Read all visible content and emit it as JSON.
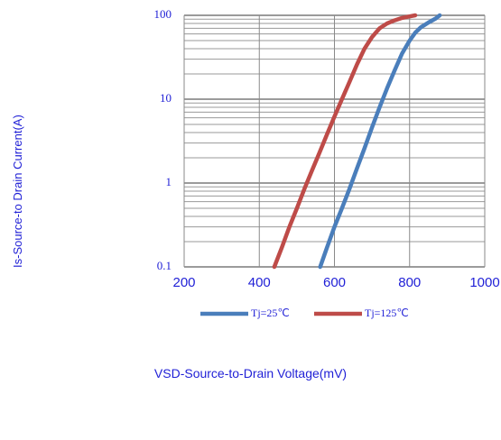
{
  "chart_data": {
    "type": "line",
    "title": "",
    "xlabel": "VSD-Source-to-Drain Voltage(mV)",
    "ylabel": "Is-Source-to Drain Current(A)",
    "xlim": [
      200,
      1000
    ],
    "ylim": [
      0.1,
      100
    ],
    "yscale": "log",
    "x_ticks": [
      "200",
      "400",
      "600",
      "800",
      "1000"
    ],
    "y_ticks": [
      "0.1",
      "1",
      "10",
      "100"
    ],
    "grid": true,
    "legend_position": "bottom",
    "series": [
      {
        "name": "Tj=25℃",
        "color": "#4a7ebb",
        "x": [
          562,
          580,
          600,
          620,
          640,
          660,
          680,
          700,
          720,
          740,
          760,
          780,
          800,
          815,
          830,
          850,
          870,
          880
        ],
        "y": [
          0.1,
          0.17,
          0.3,
          0.5,
          0.85,
          1.5,
          2.6,
          4.6,
          8.0,
          13.5,
          22,
          35,
          50,
          62,
          72,
          82,
          92,
          100
        ]
      },
      {
        "name": "Tj=125℃",
        "color": "#be4b48",
        "x": [
          440,
          460,
          480,
          500,
          520,
          540,
          560,
          580,
          600,
          620,
          640,
          660,
          680,
          700,
          720,
          740,
          760,
          780,
          800,
          815
        ],
        "y": [
          0.1,
          0.17,
          0.3,
          0.5,
          0.85,
          1.4,
          2.3,
          3.8,
          6.2,
          10,
          16,
          26,
          40,
          55,
          70,
          80,
          87,
          93,
          97,
          100
        ]
      }
    ]
  }
}
